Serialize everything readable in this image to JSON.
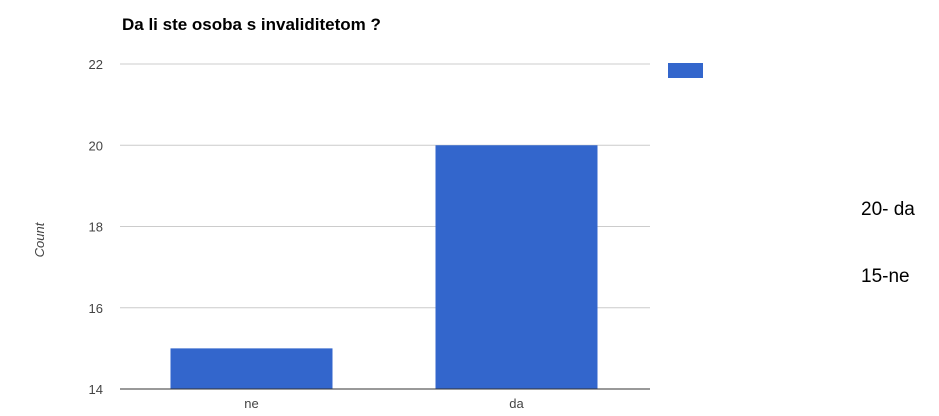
{
  "chart_data": {
    "type": "bar",
    "title": "Da li ste osoba s invaliditetom ?",
    "xlabel": "",
    "ylabel": "Count",
    "categories": [
      "ne",
      "da"
    ],
    "series": [
      {
        "values": [
          15,
          20
        ]
      }
    ],
    "ylim": [
      14,
      22
    ],
    "yticks": [
      14,
      16,
      18,
      20,
      22
    ],
    "grid": true,
    "legend_position": "top-right",
    "colors": {
      "bar": "#3366cc",
      "grid": "#cccccc",
      "axis": "#333333"
    }
  },
  "side_notes": [
    "20- da",
    "15-ne"
  ]
}
